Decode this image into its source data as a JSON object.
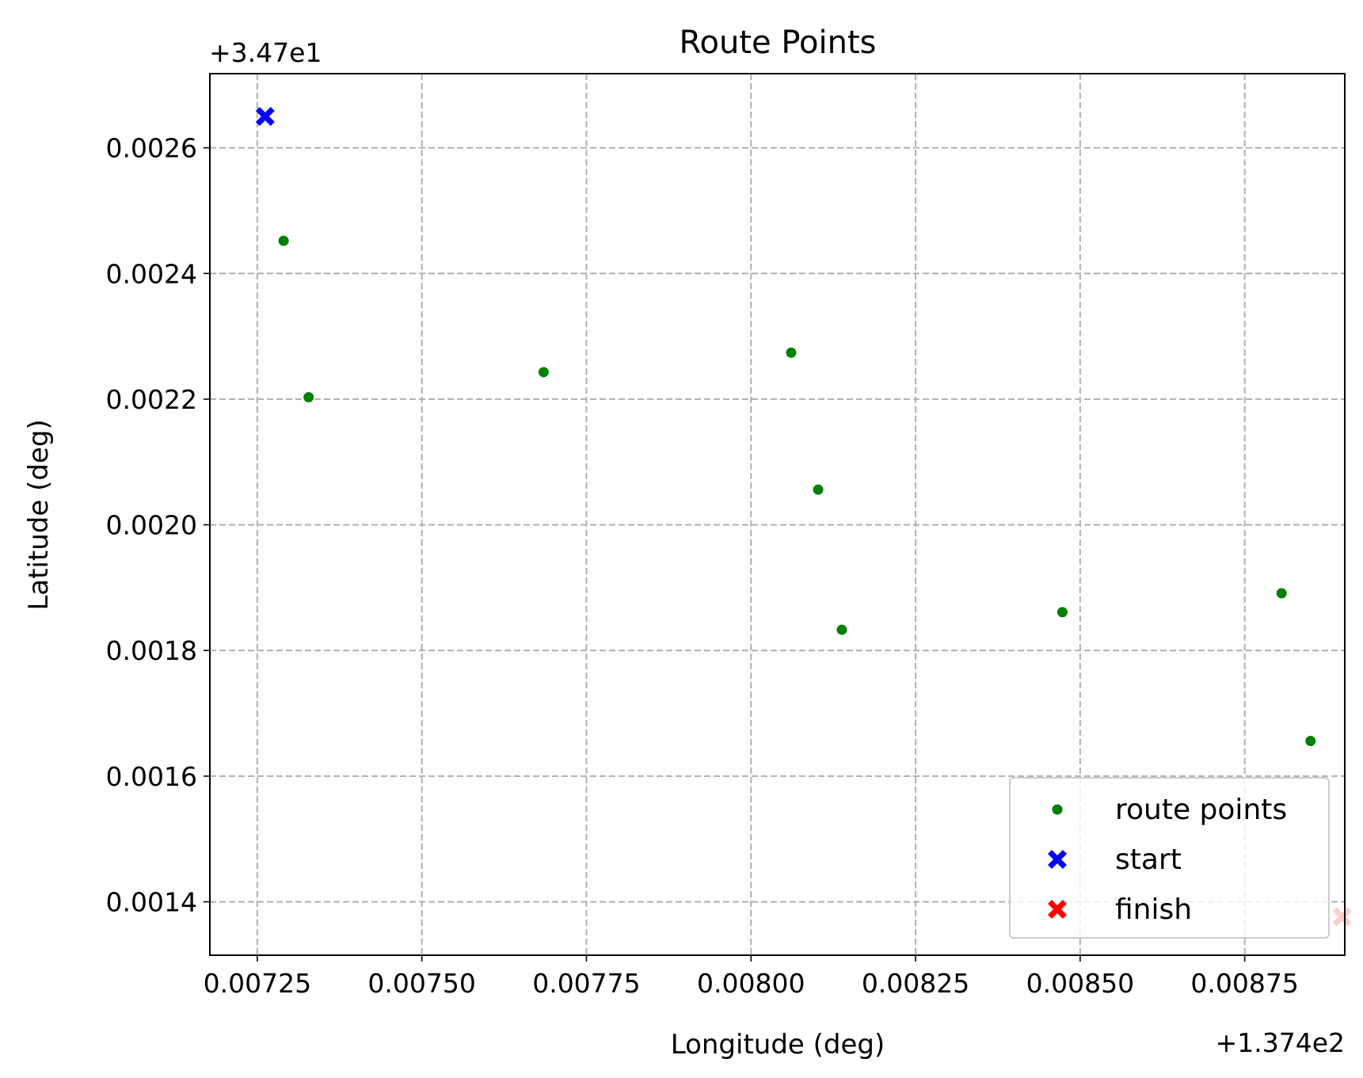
{
  "chart_data": {
    "type": "scatter",
    "title": "Route Points",
    "xlabel": "Longitude (deg)",
    "ylabel": "Latitude (deg)",
    "x_offset_label": "+1.374e2",
    "y_offset_label": "+3.47e1",
    "xlim": [
      0.007178,
      0.008902
    ],
    "ylim": [
      0.001315,
      0.002718
    ],
    "x_ticks": [
      {
        "value": 0.00725,
        "label": "0.00725"
      },
      {
        "value": 0.0075,
        "label": "0.00750"
      },
      {
        "value": 0.00775,
        "label": "0.00775"
      },
      {
        "value": 0.008,
        "label": "0.00800"
      },
      {
        "value": 0.00825,
        "label": "0.00825"
      },
      {
        "value": 0.0085,
        "label": "0.00850"
      },
      {
        "value": 0.00875,
        "label": "0.00875"
      }
    ],
    "y_ticks": [
      {
        "value": 0.0014,
        "label": "0.0014"
      },
      {
        "value": 0.0016,
        "label": "0.0016"
      },
      {
        "value": 0.0018,
        "label": "0.0018"
      },
      {
        "value": 0.002,
        "label": "0.0020"
      },
      {
        "value": 0.0022,
        "label": "0.0022"
      },
      {
        "value": 0.0024,
        "label": "0.0024"
      },
      {
        "value": 0.0026,
        "label": "0.0026"
      }
    ],
    "grid": true,
    "legend_position": "lower-right",
    "series": [
      {
        "name": "route points",
        "marker": "circle",
        "color": "#008000",
        "points": [
          {
            "x": 0.00729,
            "y": 0.002452
          },
          {
            "x": 0.007328,
            "y": 0.002203
          },
          {
            "x": 0.007685,
            "y": 0.002243
          },
          {
            "x": 0.008061,
            "y": 0.002274
          },
          {
            "x": 0.008102,
            "y": 0.002056
          },
          {
            "x": 0.008138,
            "y": 0.001833
          },
          {
            "x": 0.008473,
            "y": 0.001861
          },
          {
            "x": 0.008806,
            "y": 0.001891
          },
          {
            "x": 0.00885,
            "y": 0.001656
          }
        ]
      },
      {
        "name": "start",
        "marker": "x-filled",
        "color": "#0000ff",
        "points": [
          {
            "x": 0.007262,
            "y": 0.00265
          }
        ]
      },
      {
        "name": "finish",
        "marker": "x-filled",
        "color": "#ff0000",
        "points": [
          {
            "x": 0.008898,
            "y": 0.001376
          }
        ]
      }
    ]
  }
}
